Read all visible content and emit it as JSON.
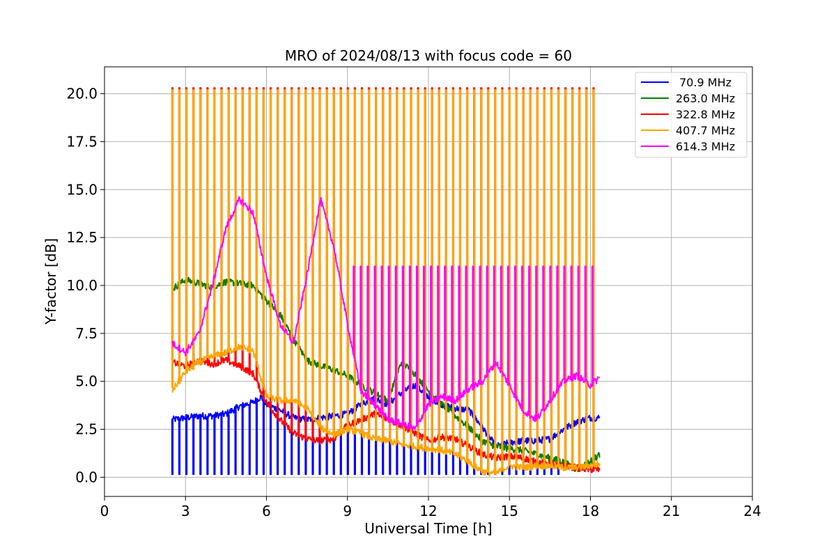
{
  "chart_data": {
    "type": "line",
    "title": "MRO of 2024/08/13 with focus code = 60",
    "xlabel": "Universal Time [h]",
    "ylabel": "Y-factor [dB]",
    "xlim": [
      0,
      24
    ],
    "ylim": [
      -1.0,
      21.4
    ],
    "xticks": [
      0,
      3,
      6,
      9,
      12,
      15,
      18,
      21,
      24
    ],
    "xtick_labels": [
      "0",
      "3",
      "6",
      "9",
      "12",
      "15",
      "18",
      "21",
      "24"
    ],
    "yticks": [
      0,
      2.5,
      5,
      7.5,
      10,
      12.5,
      15,
      17.5,
      20
    ],
    "ytick_labels": [
      "0.0",
      "2.5",
      "5.0",
      "7.5",
      "10.0",
      "12.5",
      "15.0",
      "17.5",
      "20.0"
    ],
    "grid": true,
    "legend_position": "top-right",
    "series": [
      {
        "name": " 70.9 MHz",
        "color": "#0000ff",
        "baseline": [
          [
            2.5,
            3.0
          ],
          [
            3.0,
            3.1
          ],
          [
            3.5,
            3.2
          ],
          [
            4.0,
            3.2
          ],
          [
            4.5,
            3.3
          ],
          [
            5.0,
            3.7
          ],
          [
            5.5,
            3.9
          ],
          [
            5.8,
            4.2
          ],
          [
            6.0,
            3.8
          ],
          [
            6.5,
            3.5
          ],
          [
            7.0,
            3.1
          ],
          [
            7.5,
            3.0
          ],
          [
            8.0,
            3.1
          ],
          [
            8.5,
            3.2
          ],
          [
            9.0,
            3.3
          ],
          [
            9.5,
            3.8
          ],
          [
            10.0,
            4.1
          ],
          [
            10.5,
            3.8
          ],
          [
            11.0,
            4.4
          ],
          [
            11.5,
            4.8
          ],
          [
            12.0,
            4.2
          ],
          [
            12.5,
            3.8
          ],
          [
            13.0,
            3.6
          ],
          [
            13.5,
            3.5
          ],
          [
            14.0,
            2.6
          ],
          [
            14.5,
            1.6
          ],
          [
            15.0,
            1.8
          ],
          [
            15.5,
            1.9
          ],
          [
            16.0,
            1.9
          ],
          [
            16.5,
            2.0
          ],
          [
            17.0,
            2.5
          ],
          [
            17.5,
            2.9
          ],
          [
            18.0,
            3.1
          ],
          [
            18.35,
            3.1
          ]
        ],
        "spike_to": 0.15,
        "spike_start": 2.5,
        "spike_end": 17.0,
        "spike_period": 0.25
      },
      {
        "name": "263.0 MHz",
        "color": "#008000",
        "baseline": [
          [
            2.5,
            9.8
          ],
          [
            3.0,
            10.3
          ],
          [
            3.5,
            10.1
          ],
          [
            4.0,
            9.9
          ],
          [
            4.5,
            10.2
          ],
          [
            5.0,
            10.1
          ],
          [
            5.5,
            10.0
          ],
          [
            6.0,
            9.2
          ],
          [
            6.5,
            8.5
          ],
          [
            7.0,
            7.2
          ],
          [
            7.5,
            6.1
          ],
          [
            8.0,
            5.8
          ],
          [
            8.5,
            5.6
          ],
          [
            9.0,
            5.3
          ],
          [
            9.5,
            4.8
          ],
          [
            10.0,
            4.4
          ],
          [
            10.5,
            4.0
          ],
          [
            11.0,
            6.0
          ],
          [
            11.5,
            5.4
          ],
          [
            12.0,
            4.5
          ],
          [
            12.5,
            3.8
          ],
          [
            13.0,
            3.2
          ],
          [
            13.5,
            2.6
          ],
          [
            14.0,
            1.9
          ],
          [
            14.5,
            1.6
          ],
          [
            15.0,
            1.5
          ],
          [
            15.5,
            1.4
          ],
          [
            16.0,
            1.2
          ],
          [
            16.5,
            1.0
          ],
          [
            17.0,
            0.8
          ],
          [
            17.5,
            0.4
          ],
          [
            18.0,
            0.8
          ],
          [
            18.35,
            1.2
          ]
        ],
        "spike_to": null
      },
      {
        "name": "322.8 MHz",
        "color": "#ff0000",
        "baseline": [
          [
            2.5,
            6.0
          ],
          [
            3.0,
            5.8
          ],
          [
            3.5,
            6.1
          ],
          [
            4.0,
            5.9
          ],
          [
            4.5,
            6.1
          ],
          [
            5.0,
            5.8
          ],
          [
            5.5,
            5.4
          ],
          [
            6.0,
            3.9
          ],
          [
            6.5,
            3.0
          ],
          [
            7.0,
            2.3
          ],
          [
            7.5,
            2.0
          ],
          [
            8.0,
            1.9
          ],
          [
            8.5,
            2.0
          ],
          [
            9.0,
            2.7
          ],
          [
            9.5,
            3.0
          ],
          [
            10.0,
            3.3
          ],
          [
            10.5,
            3.0
          ],
          [
            11.0,
            2.7
          ],
          [
            11.5,
            2.3
          ],
          [
            12.0,
            1.9
          ],
          [
            12.5,
            2.1
          ],
          [
            13.0,
            2.0
          ],
          [
            13.5,
            1.6
          ],
          [
            14.0,
            1.2
          ],
          [
            14.5,
            1.0
          ],
          [
            15.0,
            1.1
          ],
          [
            15.5,
            1.0
          ],
          [
            16.0,
            0.8
          ],
          [
            16.5,
            0.7
          ],
          [
            17.0,
            0.6
          ],
          [
            17.5,
            0.5
          ],
          [
            18.0,
            0.4
          ],
          [
            18.35,
            0.4
          ]
        ],
        "spike_to": 20.3,
        "spike_start": 2.5,
        "spike_end": 18.2,
        "spike_period": 0.25
      },
      {
        "name": "407.7 MHz",
        "color": "#ffa500",
        "baseline": [
          [
            2.5,
            4.5
          ],
          [
            3.0,
            5.5
          ],
          [
            3.5,
            6.0
          ],
          [
            4.0,
            6.3
          ],
          [
            4.5,
            6.5
          ],
          [
            5.0,
            6.8
          ],
          [
            5.5,
            6.6
          ],
          [
            6.0,
            4.2
          ],
          [
            6.5,
            4.0
          ],
          [
            7.0,
            4.0
          ],
          [
            7.5,
            3.6
          ],
          [
            8.0,
            2.6
          ],
          [
            8.5,
            2.2
          ],
          [
            9.0,
            2.5
          ],
          [
            9.5,
            2.3
          ],
          [
            10.0,
            2.0
          ],
          [
            10.5,
            1.9
          ],
          [
            11.0,
            1.7
          ],
          [
            11.5,
            1.6
          ],
          [
            12.0,
            1.5
          ],
          [
            12.5,
            1.4
          ],
          [
            13.0,
            1.2
          ],
          [
            13.5,
            0.8
          ],
          [
            14.0,
            0.3
          ],
          [
            14.5,
            0.2
          ],
          [
            15.0,
            0.6
          ],
          [
            15.5,
            0.5
          ],
          [
            16.0,
            0.6
          ],
          [
            16.5,
            0.6
          ],
          [
            17.0,
            0.5
          ],
          [
            17.5,
            0.5
          ],
          [
            18.0,
            0.6
          ],
          [
            18.35,
            0.7
          ]
        ],
        "spike_to": 20.2,
        "spike_start": 2.5,
        "spike_end": 18.2,
        "spike_period": 0.25
      },
      {
        "name": "614.3 MHz",
        "color": "#ff00ff",
        "baseline": [
          [
            2.5,
            7.0
          ],
          [
            3.0,
            6.5
          ],
          [
            3.5,
            7.5
          ],
          [
            4.0,
            10.0
          ],
          [
            4.5,
            13.0
          ],
          [
            5.0,
            14.5
          ],
          [
            5.5,
            13.8
          ],
          [
            6.0,
            10.5
          ],
          [
            6.5,
            8.0
          ],
          [
            7.0,
            7.0
          ],
          [
            7.5,
            10.5
          ],
          [
            8.0,
            14.5
          ],
          [
            8.5,
            12.0
          ],
          [
            9.0,
            8.0
          ],
          [
            9.5,
            4.5
          ],
          [
            10.0,
            3.8
          ],
          [
            10.5,
            3.0
          ],
          [
            11.0,
            2.8
          ],
          [
            11.5,
            2.5
          ],
          [
            12.0,
            3.8
          ],
          [
            12.5,
            4.2
          ],
          [
            13.0,
            4.0
          ],
          [
            13.5,
            4.6
          ],
          [
            14.0,
            5.0
          ],
          [
            14.5,
            6.0
          ],
          [
            15.0,
            4.8
          ],
          [
            15.5,
            3.5
          ],
          [
            16.0,
            3.0
          ],
          [
            16.5,
            4.0
          ],
          [
            17.0,
            5.0
          ],
          [
            17.5,
            5.3
          ],
          [
            18.0,
            4.8
          ],
          [
            18.35,
            5.2
          ]
        ],
        "spike_to": 11.0,
        "spike_start": 9.2,
        "spike_end": 18.2,
        "spike_period": 0.25
      }
    ]
  }
}
